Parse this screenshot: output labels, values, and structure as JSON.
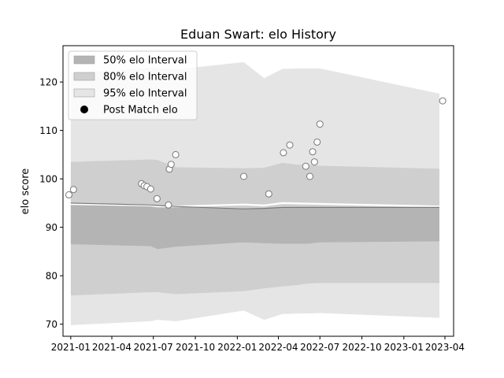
{
  "chart_data": {
    "type": "area",
    "title": "Eduan Swart: elo History",
    "xlabel": "",
    "ylabel": "elo score",
    "x_ticks": [
      "2021-01",
      "2021-04",
      "2021-07",
      "2021-10",
      "2022-01",
      "2022-04",
      "2022-07",
      "2022-10",
      "2023-01",
      "2023-04"
    ],
    "y_ticks": [
      "70",
      "80",
      "90",
      "100",
      "110",
      "120"
    ],
    "xlim": [
      "2020-12-15",
      "2023-04-20"
    ],
    "ylim": [
      67.5,
      127.5
    ],
    "grid": false,
    "legend": {
      "position": "top-left",
      "entries": [
        "50% elo Interval",
        "80% elo Interval",
        "95% elo Interval",
        "Post Match elo"
      ]
    },
    "bands": {
      "x": [
        "2021-01-01",
        "2021-06-25",
        "2021-07-10",
        "2021-08-20",
        "2022-01-15",
        "2022-03-01",
        "2022-04-10",
        "2022-05-15",
        "2022-06-05",
        "2022-07-01",
        "2023-03-20"
      ],
      "interval_50": {
        "upper": [
          95.0,
          94.6,
          94.5,
          94.3,
          93.8,
          93.9,
          94.1,
          94.1,
          94.1,
          94.1,
          94.1
        ],
        "lower": [
          86.5,
          86.1,
          85.5,
          86.0,
          86.9,
          86.7,
          86.6,
          86.6,
          86.6,
          86.9,
          87.1
        ]
      },
      "interval_80": {
        "upper": [
          103.5,
          104.0,
          103.9,
          102.4,
          102.2,
          102.3,
          103.3,
          102.9,
          102.9,
          102.7,
          102.1
        ],
        "lower": [
          75.9,
          76.6,
          76.6,
          76.2,
          76.8,
          77.4,
          77.8,
          78.1,
          78.4,
          78.5,
          78.5
        ]
      },
      "interval_95": {
        "upper": [
          121.8,
          122.9,
          122.8,
          122.6,
          124.1,
          120.8,
          122.7,
          122.8,
          122.8,
          122.8,
          117.6
        ],
        "lower": [
          69.8,
          70.6,
          70.9,
          70.6,
          72.8,
          70.9,
          72.1,
          72.2,
          72.2,
          72.3,
          71.3
        ]
      }
    },
    "series": [
      {
        "name": "Post Match elo",
        "x": [
          "2020-12-28",
          "2021-01-07",
          "2021-06-05",
          "2021-06-11",
          "2021-06-17",
          "2021-06-25",
          "2021-07-09",
          "2021-08-03",
          "2021-08-05",
          "2021-08-09",
          "2021-08-19",
          "2022-01-15",
          "2022-03-11",
          "2022-04-12",
          "2022-04-26",
          "2022-05-31",
          "2022-06-09",
          "2022-06-15",
          "2022-06-19",
          "2022-06-25",
          "2022-07-01",
          "2023-03-27"
        ],
        "values": [
          96.7,
          97.8,
          99.0,
          98.6,
          98.4,
          97.9,
          95.9,
          94.6,
          102.0,
          103.0,
          105.0,
          100.5,
          96.9,
          105.4,
          107.0,
          102.6,
          100.5,
          105.6,
          103.5,
          107.6,
          111.3,
          116.1
        ]
      }
    ],
    "mean_line": {
      "x": [
        "2021-01-01",
        "2021-06-25",
        "2021-07-10",
        "2021-08-20",
        "2022-01-15",
        "2022-03-01",
        "2022-04-10",
        "2023-03-20"
      ],
      "values": [
        94.8,
        94.5,
        94.3,
        94.3,
        94.7,
        94.5,
        95.0,
        94.3
      ]
    },
    "colors": {
      "interval_50": "#b4b4b4",
      "interval_80": "#cfcfcf",
      "interval_95": "#e5e5e5",
      "mean_line": "#ffffff",
      "center_line": "#7a7a7a",
      "marker_fill": "#ffffff",
      "marker_edge": "#777777",
      "legend_marker": "#000000"
    }
  }
}
